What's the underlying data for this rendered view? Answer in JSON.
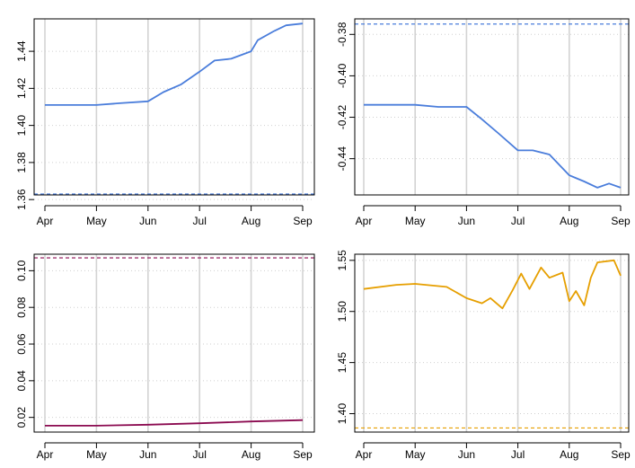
{
  "chart_data": [
    {
      "type": "line",
      "x_ticks": [
        "Apr",
        "May",
        "Jun",
        "Jul",
        "Aug",
        "Sep"
      ],
      "ylim": [
        1.3625,
        1.4575
      ],
      "y_ticks": [
        "1.36",
        "1.38",
        "1.40",
        "1.42",
        "1.44"
      ],
      "grid": true,
      "reference_line": 1.363,
      "series": [
        {
          "color": "#4a7ddb",
          "points": [
            [
              "Apr 01",
              1.411
            ],
            [
              "Apr 15",
              1.411
            ],
            [
              "May 01",
              1.411
            ],
            [
              "May 15",
              1.412
            ],
            [
              "Jun 01",
              1.413
            ],
            [
              "Jun 10",
              1.418
            ],
            [
              "Jun 20",
              1.422
            ],
            [
              "Jul 01",
              1.429
            ],
            [
              "Jul 10",
              1.435
            ],
            [
              "Jul 20",
              1.436
            ],
            [
              "Aug 01",
              1.44
            ],
            [
              "Aug 05",
              1.446
            ],
            [
              "Aug 15",
              1.451
            ],
            [
              "Aug 22",
              1.454
            ],
            [
              "Sep 01",
              1.455
            ]
          ]
        }
      ]
    },
    {
      "type": "line",
      "x_ticks": [
        "Apr",
        "May",
        "Jun",
        "Jul",
        "Aug",
        "Sep"
      ],
      "ylim": [
        -0.4575,
        -0.3725
      ],
      "y_ticks": [
        "-0.38",
        "-0.40",
        "-0.42",
        "-0.44"
      ],
      "grid": true,
      "reference_line": -0.375,
      "series": [
        {
          "color": "#4a7ddb",
          "points": [
            [
              "Apr 01",
              -0.414
            ],
            [
              "Apr 15",
              -0.414
            ],
            [
              "May 01",
              -0.414
            ],
            [
              "May 15",
              -0.415
            ],
            [
              "Jun 01",
              -0.415
            ],
            [
              "Jun 10",
              -0.421
            ],
            [
              "Jun 20",
              -0.428
            ],
            [
              "Jul 01",
              -0.436
            ],
            [
              "Jul 10",
              -0.436
            ],
            [
              "Jul 20",
              -0.438
            ],
            [
              "Aug 01",
              -0.448
            ],
            [
              "Aug 10",
              -0.451
            ],
            [
              "Aug 18",
              -0.454
            ],
            [
              "Aug 25",
              -0.452
            ],
            [
              "Sep 01",
              -0.454
            ]
          ]
        }
      ]
    },
    {
      "type": "line",
      "x_ticks": [
        "Apr",
        "May",
        "Jun",
        "Jul",
        "Aug",
        "Sep"
      ],
      "ylim": [
        0.012,
        0.109
      ],
      "y_ticks": [
        "0.02",
        "0.04",
        "0.06",
        "0.08",
        "0.10"
      ],
      "grid": true,
      "reference_line": 0.107,
      "series": [
        {
          "color": "#8b0a50",
          "points": [
            [
              "Apr 01",
              0.0155
            ],
            [
              "May 01",
              0.0155
            ],
            [
              "Jun 01",
              0.016
            ],
            [
              "Jul 01",
              0.0168
            ],
            [
              "Aug 01",
              0.0178
            ],
            [
              "Sep 01",
              0.0185
            ]
          ]
        }
      ]
    },
    {
      "type": "line",
      "x_ticks": [
        "Apr",
        "May",
        "Jun",
        "Jul",
        "Aug",
        "Sep"
      ],
      "ylim": [
        1.382,
        1.556
      ],
      "y_ticks": [
        "1.40",
        "1.45",
        "1.50",
        "1.55"
      ],
      "grid": true,
      "reference_line": 1.386,
      "series": [
        {
          "color": "#e69f00",
          "points": [
            [
              "Apr 01",
              1.522
            ],
            [
              "Apr 20",
              1.526
            ],
            [
              "May 01",
              1.527
            ],
            [
              "May 20",
              1.524
            ],
            [
              "Jun 01",
              1.513
            ],
            [
              "Jun 10",
              1.508
            ],
            [
              "Jun 15",
              1.513
            ],
            [
              "Jun 22",
              1.503
            ],
            [
              "Jun 28",
              1.521
            ],
            [
              "Jul 03",
              1.537
            ],
            [
              "Jul 08",
              1.522
            ],
            [
              "Jul 15",
              1.543
            ],
            [
              "Jul 20",
              1.533
            ],
            [
              "Jul 28",
              1.538
            ],
            [
              "Aug 01",
              1.51
            ],
            [
              "Aug 05",
              1.52
            ],
            [
              "Aug 10",
              1.506
            ],
            [
              "Aug 14",
              1.533
            ],
            [
              "Aug 18",
              1.548
            ],
            [
              "Aug 28",
              1.55
            ],
            [
              "Sep 01",
              1.535
            ]
          ]
        }
      ]
    }
  ]
}
